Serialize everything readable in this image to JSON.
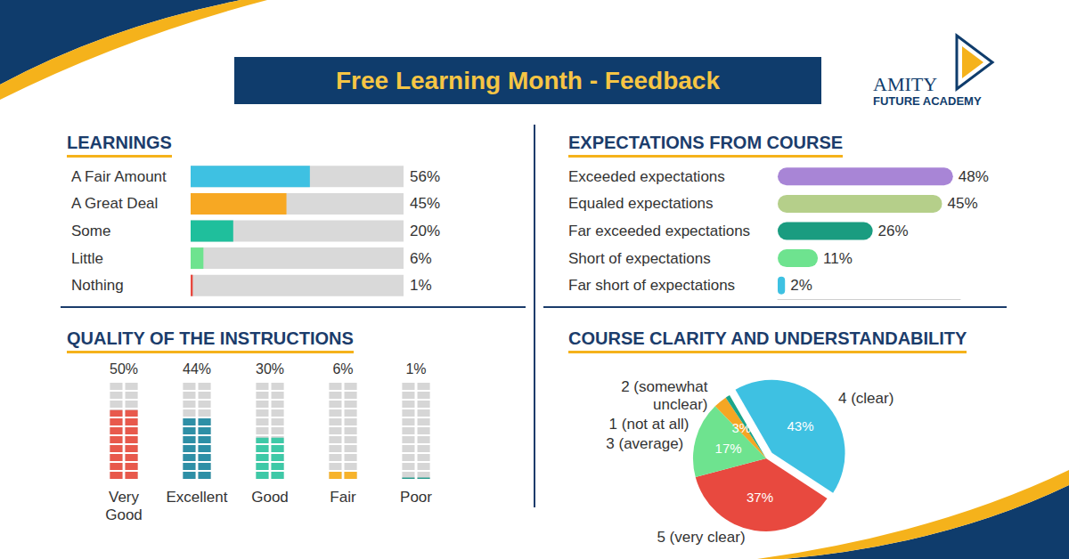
{
  "title": "Free Learning Month - Feedback",
  "logo": {
    "name": "AMITY",
    "tagline": "FUTURE ACADEMY"
  },
  "chart_data": [
    {
      "type": "bar",
      "title": "LEARNINGS",
      "orientation": "horizontal",
      "categories": [
        "A Fair Amount",
        "A Great Deal",
        "Some",
        "Little",
        "Nothing"
      ],
      "values": [
        56,
        45,
        20,
        6,
        1
      ],
      "value_labels": [
        "56%",
        "45%",
        "20%",
        "6%",
        "1%"
      ],
      "colors": [
        "#3ec1e2",
        "#f7a823",
        "#1fbf9c",
        "#6ee38f",
        "#e8493f"
      ],
      "xlim": [
        0,
        100
      ],
      "tick_labels": "y",
      "data_labels": true
    },
    {
      "type": "bar",
      "title": "EXPECTATIONS FROM COURSE",
      "orientation": "horizontal",
      "categories": [
        "Exceeded expectations",
        "Equaled expectations",
        "Far exceeded expectations",
        "Short of expectations",
        "Far short of expectations"
      ],
      "values": [
        48,
        45,
        26,
        11,
        2
      ],
      "value_labels": [
        "48%",
        "45%",
        "26%",
        "11%",
        "2%"
      ],
      "colors": [
        "#a885d6",
        "#b5cf8a",
        "#1a9c80",
        "#6ee38f",
        "#3ec1e2"
      ],
      "xlim": [
        0,
        50
      ],
      "tick_labels": "y",
      "data_labels": true
    },
    {
      "type": "waffle",
      "title": "QUALITY OF THE INSTRUCTIONS",
      "categories": [
        "Very Good",
        "Excellent",
        "Good",
        "Fair",
        "Poor"
      ],
      "values": [
        50,
        44,
        30,
        6,
        1
      ],
      "value_labels": [
        "50%",
        "44%",
        "30%",
        "6%",
        "1%"
      ],
      "colors": [
        "#e8594c",
        "#2e8fa6",
        "#3ec9a7",
        "#f7b32b",
        "#2a9d8f"
      ],
      "ylim": [
        0,
        70
      ],
      "tick_labels": "x",
      "data_labels": true
    },
    {
      "type": "pie",
      "title": "COURSE CLARITY AND UNDERSTANDABILITY",
      "categories": [
        "4 (clear)",
        "5 (very clear)",
        "3 (average)",
        "2 (somewhat unclear)",
        "1 (not at all)"
      ],
      "values": [
        43,
        37,
        17,
        3,
        1
      ],
      "value_labels": [
        "43%",
        "37%",
        "17%",
        "3%",
        "1%"
      ],
      "colors": [
        "#3ec1e2",
        "#e8493f",
        "#6ee38f",
        "#f5a623",
        "#1aa58a"
      ],
      "data_labels": true
    }
  ]
}
